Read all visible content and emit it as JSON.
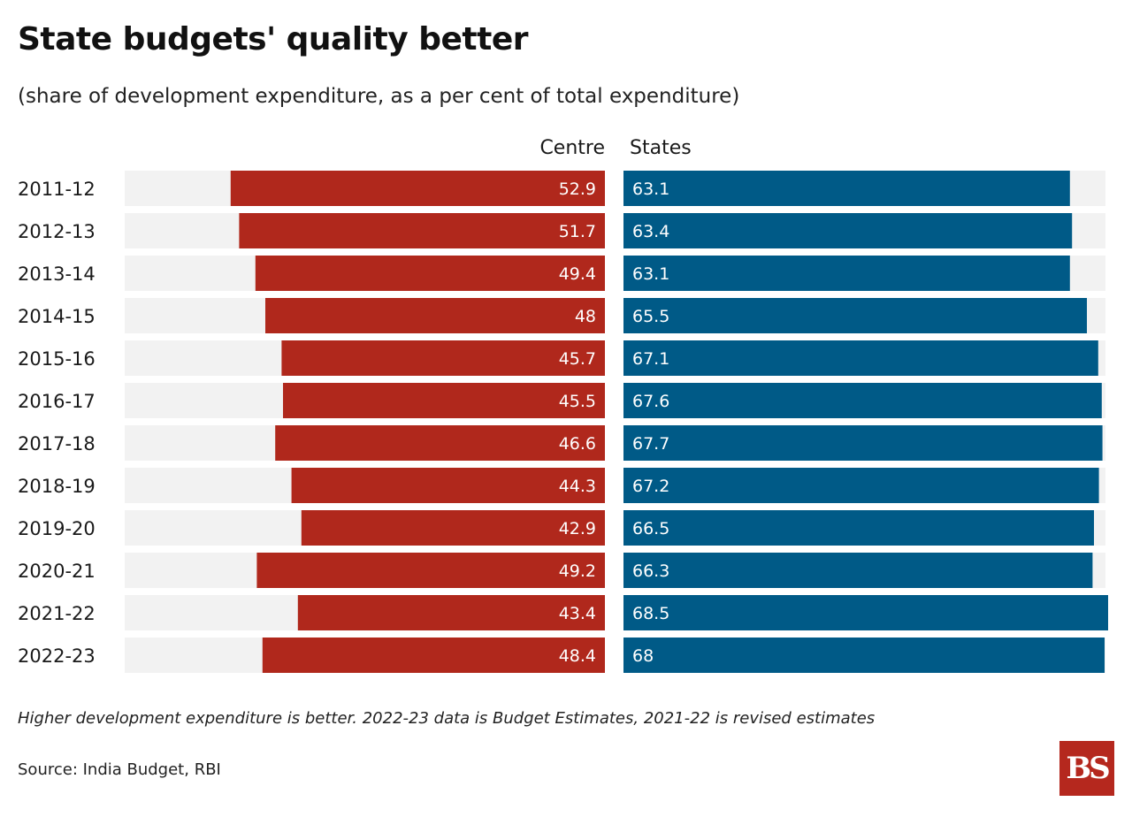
{
  "chart_data": {
    "type": "bar",
    "title": "State budgets' quality better",
    "subtitle": "(share of development expenditure, as a per cent of total expenditure)",
    "categories": [
      "2011-12",
      "2012-13",
      "2013-14",
      "2014-15",
      "2015-16",
      "2016-17",
      "2017-18",
      "2018-19",
      "2019-20",
      "2020-21",
      "2021-22",
      "2022-23"
    ],
    "series": [
      {
        "name": "Centre",
        "color": "#b0281c",
        "values": [
          52.9,
          51.7,
          49.4,
          48,
          45.7,
          45.5,
          46.6,
          44.3,
          42.9,
          49.2,
          43.4,
          48.4
        ]
      },
      {
        "name": "States",
        "color": "#005a87",
        "values": [
          63.1,
          63.4,
          63.1,
          65.5,
          67.1,
          67.6,
          67.7,
          67.2,
          66.5,
          66.3,
          68.5,
          68
        ]
      }
    ],
    "value_labels": {
      "Centre": [
        "52.9",
        "51.7",
        "49.4",
        "48",
        "45.7",
        "45.5",
        "46.6",
        "44.3",
        "42.9",
        "49.2",
        "43.4",
        "48.4"
      ],
      "States": [
        "63.1",
        "63.4",
        "63.1",
        "65.5",
        "67.1",
        "67.6",
        "67.7",
        "67.2",
        "66.5",
        "66.3",
        "68.5",
        "68"
      ]
    },
    "background_color": "#f2f2f2",
    "legend": "column headers above each bar group",
    "grid": false,
    "note": "Higher development expenditure is better. 2022-23 data is Budget Estimates, 2021-22 is revised estimates",
    "source": "Source: India Budget, RBI"
  },
  "logo": {
    "text": "BS",
    "color": "#b5281e"
  }
}
